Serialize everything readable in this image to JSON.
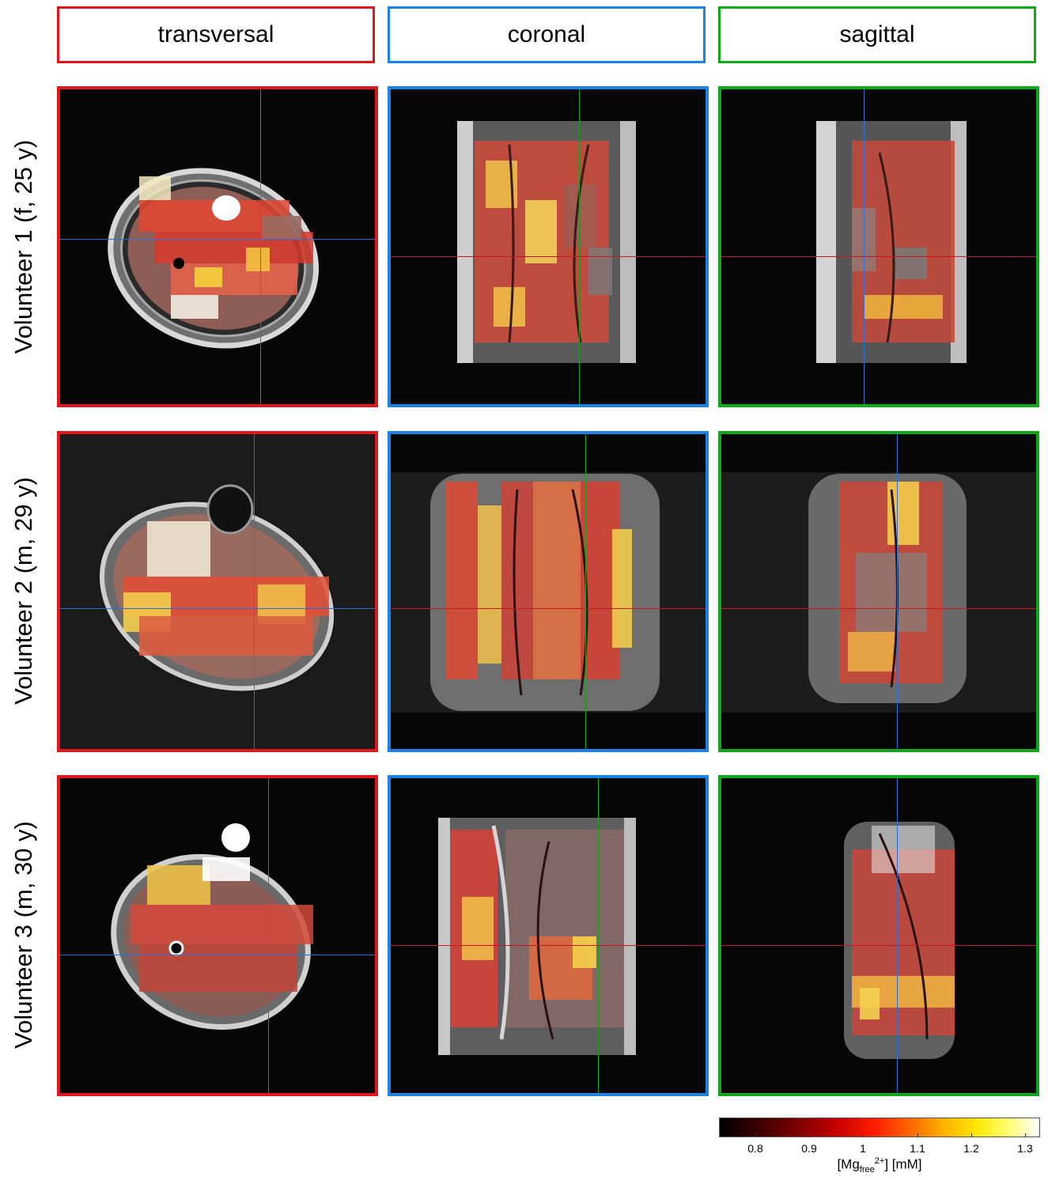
{
  "column_headers": [
    "transversal",
    "coronal",
    "sagittal"
  ],
  "row_labels": [
    "Volunteer 1 (f, 25 y)",
    "Volunteer 2 (m, 29 y)",
    "Volunteer 3 (m, 30 y)"
  ],
  "frame_colors": {
    "transversal": "#e3161b",
    "coronal": "#1a82e2",
    "sagittal": "#12a61a"
  },
  "colorbar": {
    "ticks": [
      "0.8",
      "0.9",
      "1",
      "1.1",
      "1.2",
      "1.3"
    ],
    "label_main": "[Mg",
    "label_sub": "free",
    "label_sup": "2+",
    "label_unit": "] [mM]",
    "colormap": "hot"
  }
}
